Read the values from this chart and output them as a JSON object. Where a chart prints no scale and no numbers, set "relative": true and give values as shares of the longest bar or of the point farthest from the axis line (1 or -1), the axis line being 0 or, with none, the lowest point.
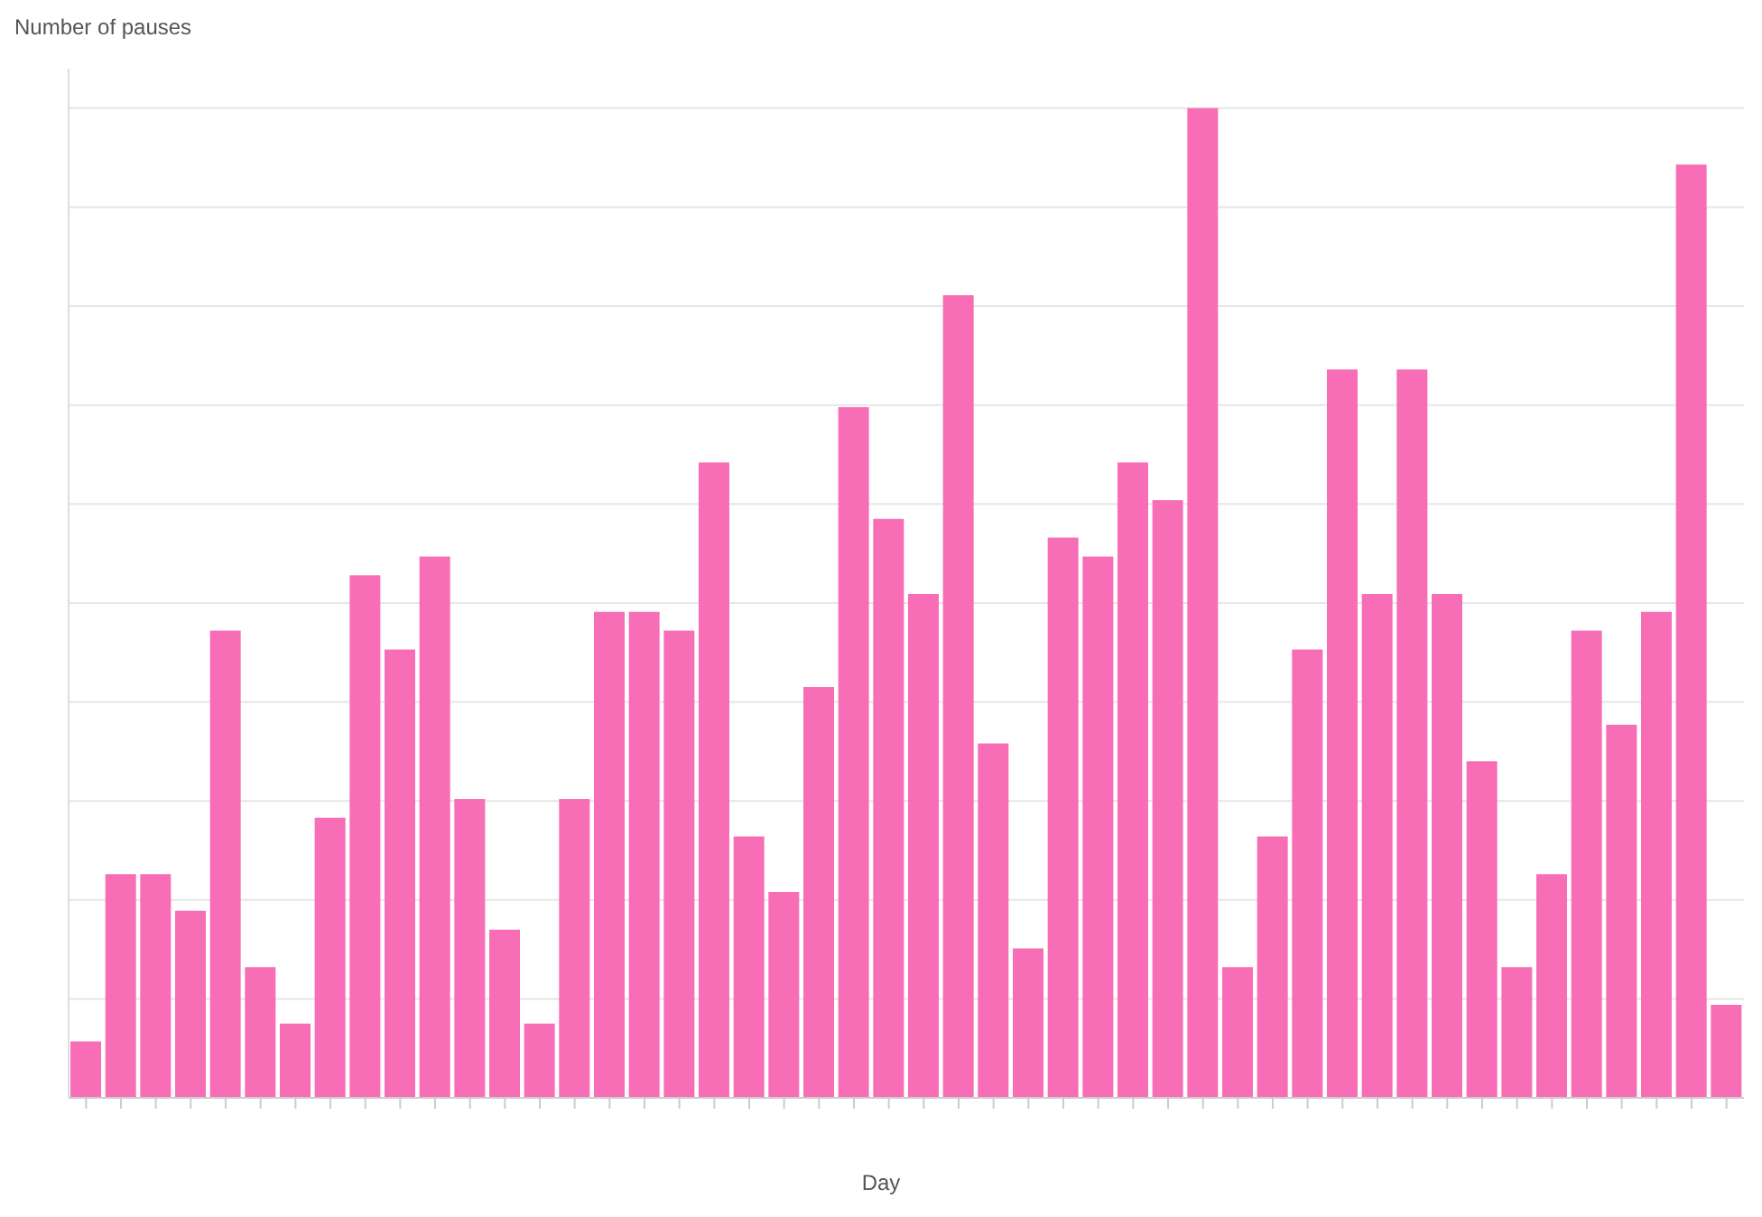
{
  "chart_data": {
    "type": "bar",
    "relative": true,
    "xlabel": "Day",
    "ylabel": "Number of pauses",
    "color": "#f76eb7",
    "grid": "y",
    "categories": [
      null,
      null,
      null,
      null,
      null,
      null,
      null,
      null,
      null,
      null,
      null,
      null,
      null,
      null,
      null,
      null,
      null,
      null,
      null,
      null,
      null,
      null,
      null,
      null,
      null,
      null,
      null,
      null,
      null,
      null,
      null,
      null,
      null,
      null,
      null,
      null,
      null,
      null,
      null,
      null,
      null,
      null,
      null,
      null,
      null,
      null,
      null,
      null
    ],
    "values": [
      0.057,
      0.226,
      0.226,
      0.189,
      0.472,
      0.132,
      0.075,
      0.283,
      0.528,
      0.453,
      0.547,
      0.302,
      0.17,
      0.075,
      0.302,
      0.491,
      0.491,
      0.472,
      0.642,
      0.264,
      0.208,
      0.415,
      0.698,
      0.585,
      0.509,
      0.811,
      0.358,
      0.151,
      0.566,
      0.547,
      0.642,
      0.604,
      1,
      0.132,
      0.264,
      0.453,
      0.736,
      0.509,
      0.736,
      0.509,
      0.34,
      0.132,
      0.226,
      0.472,
      0.377,
      0.491,
      0.943,
      0.094
    ]
  }
}
